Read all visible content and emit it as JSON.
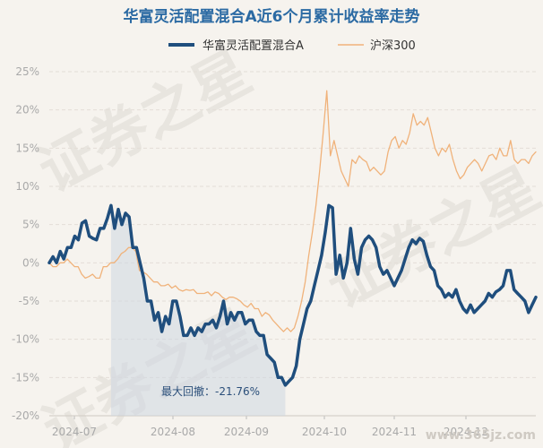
{
  "chart_data": {
    "type": "line",
    "title": "华富灵活配置混合A近6个月累计收益率走势",
    "ylim": [
      -20,
      25
    ],
    "y_ticks": [
      "25%",
      "20%",
      "15%",
      "10%",
      "5%",
      "0%",
      "-5%",
      "-10%",
      "-15%",
      "-20%"
    ],
    "y_tick_values": [
      25,
      20,
      15,
      10,
      5,
      0,
      -5,
      -10,
      -15,
      -20
    ],
    "x_ticks": [
      "2024-07",
      "2024-08",
      "2024-09",
      "2024-10",
      "2024-11",
      "2024-12"
    ],
    "grid": true,
    "legend_placement": "top",
    "series": [
      {
        "name": "华富灵活配置混合A",
        "color": "#1f4e7d",
        "values": [
          0,
          0.8,
          0,
          1.5,
          0.5,
          2,
          2,
          3.5,
          3,
          5.2,
          5.5,
          3.5,
          3.2,
          3,
          4.5,
          4.5,
          5.8,
          7.5,
          4.5,
          7,
          5,
          6.5,
          6,
          2,
          2,
          0,
          -2,
          -5,
          -5,
          -7.5,
          -6.5,
          -9,
          -7,
          -8,
          -5,
          -5,
          -7,
          -9.5,
          -9.5,
          -8.5,
          -9.5,
          -8.5,
          -9,
          -8,
          -8,
          -7.5,
          -8.5,
          -7,
          -5,
          -8,
          -6.5,
          -7.5,
          -6.5,
          -6.5,
          -8,
          -7.5,
          -7.5,
          -9,
          -9.5,
          -9.5,
          -12,
          -12.5,
          -13,
          -15,
          -15,
          -16,
          -15.5,
          -15,
          -13.5,
          -10,
          -8,
          -6,
          -5,
          -3,
          -1,
          1,
          4,
          7.5,
          7.2,
          -1.5,
          1,
          -2,
          0,
          4.5,
          0.5,
          -1.5,
          2,
          3,
          3.5,
          3,
          2,
          -0.5,
          -1.5,
          -1,
          -2,
          -3,
          -2,
          -1,
          0.5,
          2,
          3,
          2.5,
          3.2,
          2.8,
          1,
          -0.5,
          -1,
          -3,
          -3.5,
          -4.5,
          -4,
          -4.5,
          -3.5,
          -5,
          -6,
          -6.5,
          -5.5,
          -6.5,
          -6,
          -5.5,
          -5,
          -4,
          -4.5,
          -3.8,
          -3.5,
          -3,
          -1,
          -1,
          -3.5,
          -4,
          -4.5,
          -5,
          -6.5,
          -5.5,
          -4.5
        ]
      },
      {
        "name": "沪深300",
        "color": "#f0b27a",
        "values": [
          0,
          -0.5,
          -0.5,
          0,
          0,
          0.5,
          0,
          -0.5,
          -0.5,
          -1.5,
          -2,
          -1.8,
          -1.5,
          -2,
          -2,
          -0.5,
          -0.5,
          0,
          0,
          0.5,
          1.2,
          1.5,
          2,
          2,
          1.5,
          -1,
          -1.2,
          -1.5,
          -2,
          -2.5,
          -2.5,
          -3,
          -3,
          -2.8,
          -3.3,
          -3,
          -3.5,
          -3.7,
          -3.5,
          -3.6,
          -3.5,
          -4,
          -4,
          -4,
          -3.8,
          -4.3,
          -3.8,
          -4,
          -4.5,
          -4.8,
          -4.5,
          -4.5,
          -4.7,
          -5,
          -5.5,
          -5.8,
          -5.3,
          -6,
          -6,
          -7,
          -6.5,
          -6.8,
          -7.5,
          -8,
          -8.5,
          -9,
          -8.5,
          -9,
          -8.5,
          -7,
          -5,
          -2.5,
          1,
          4,
          7.5,
          12,
          17,
          22.5,
          14,
          16,
          14,
          12,
          11,
          10,
          13.5,
          13,
          14,
          13.5,
          13.2,
          12,
          12.5,
          12,
          11.5,
          12,
          14.5,
          16,
          16.5,
          15,
          16,
          15.5,
          17,
          19.5,
          18,
          18.5,
          18,
          19,
          17,
          15,
          14,
          15,
          14.5,
          15.5,
          13.5,
          12,
          11,
          11.5,
          12.5,
          13,
          13.5,
          13,
          12,
          13,
          14,
          14.2,
          13.5,
          15,
          14,
          14,
          16,
          13.5,
          13,
          13.5,
          13.5,
          13,
          14,
          14.5
        ]
      }
    ],
    "max_drawdown_label": "最大回撤：-21.76%"
  },
  "watermark": {
    "text_top": "证券之星",
    "text_bottom": "证券之星",
    "brand": "www.365jz.com"
  }
}
